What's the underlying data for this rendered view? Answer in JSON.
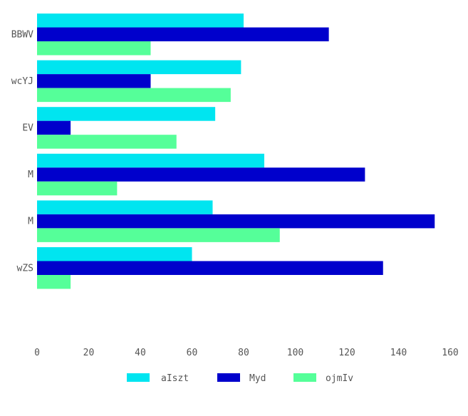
{
  "chart_data": {
    "type": "bar",
    "orientation": "horizontal",
    "title": "",
    "xlabel": "",
    "ylabel": "",
    "categories": [
      "BBWV",
      "wcYJ",
      "EV",
      "M",
      "M",
      "wZS"
    ],
    "series": [
      {
        "name": "aIszt",
        "color": "#00E5F0",
        "values": [
          80,
          79,
          69,
          88,
          68,
          60
        ]
      },
      {
        "name": "Myd",
        "color": "#0000CC",
        "values": [
          113,
          44,
          13,
          127,
          154,
          134
        ]
      },
      {
        "name": "ojmIv",
        "color": "#55FF99",
        "values": [
          44,
          75,
          54,
          31,
          94,
          13
        ]
      }
    ],
    "xlim": [
      0,
      160
    ],
    "xticks": [
      0,
      20,
      40,
      60,
      80,
      100,
      120,
      140,
      160
    ],
    "grid": false,
    "legend": "bottom"
  }
}
